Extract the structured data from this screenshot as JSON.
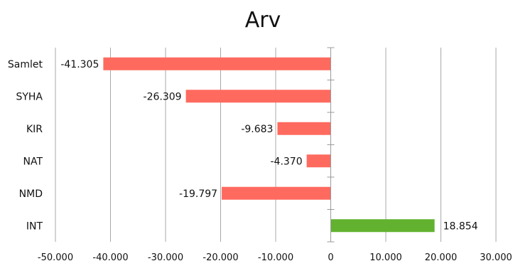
{
  "chart_data": {
    "type": "bar",
    "orientation": "horizontal",
    "title": "Arv",
    "categories": [
      "Samlet",
      "SYHA",
      "KIR",
      "NAT",
      "NMD",
      "INT"
    ],
    "values": [
      -41305,
      -26309,
      -9683,
      -4370,
      -19797,
      18854
    ],
    "data_labels": [
      "-41.305",
      "-26.309",
      "-9.683",
      "-4.370",
      "-19.797",
      "18.854"
    ],
    "xlim": [
      -50000,
      30000
    ],
    "xticks": [
      -50000,
      -40000,
      -30000,
      -20000,
      -10000,
      0,
      10000,
      20000,
      30000
    ],
    "xtick_labels": [
      "-50.000",
      "-40.000",
      "-30.000",
      "-20.000",
      "-10.000",
      "0",
      "10.000",
      "20.000",
      "30.000"
    ],
    "grid": "vertical",
    "legend": "none",
    "colors": {
      "negative": "#ff6a5f",
      "positive": "#62b22f",
      "grid": "#a8a8a8",
      "axis": "#9a9a9a"
    }
  }
}
